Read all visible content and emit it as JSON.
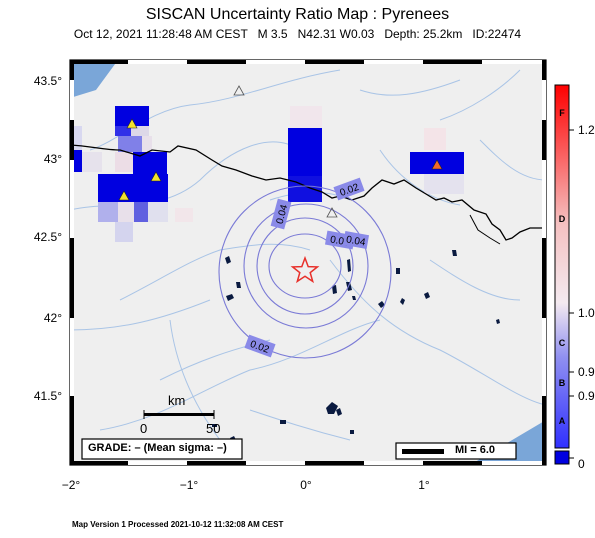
{
  "title": "SISCAN Uncertainty Ratio Map : Pyrenees",
  "subtitle": {
    "datetime": "Oct 12, 2021 11:28:48 AM CEST",
    "magnitude": "M 3.5",
    "location": "N42.31 W0.03",
    "depth": "Depth: 25.2km",
    "id": "ID:22474"
  },
  "axes": {
    "lat_ticks": [
      "43.5°",
      "43°",
      "42.5°",
      "42°",
      "41.5°"
    ],
    "lon_ticks": [
      "−2°",
      "−1°",
      "0°",
      "1°"
    ]
  },
  "contours": [
    "0.02",
    "0.04",
    "0.02",
    "0.08",
    "0.04",
    "0.02"
  ],
  "scale_bar": {
    "title": "km",
    "min": "0",
    "max": "50"
  },
  "grade_text": "GRADE: – (Mean sigma: –)",
  "mi_legend": "MI = 6.0",
  "colorbar": {
    "grades": [
      "F",
      "D",
      "C",
      "B",
      "A"
    ],
    "values": [
      "1.2",
      "1.0",
      "0.9",
      "0.9",
      "0"
    ]
  },
  "footer": "Map Version 1 Processed 2021-10-12 11:32:08 AM CEST",
  "colors": {
    "cell_blue": "#0000e0",
    "epicenter": "#e8302a",
    "station": "#f2e12e",
    "station_alt": "#f26a2a",
    "water": "#7aa6d8"
  }
}
